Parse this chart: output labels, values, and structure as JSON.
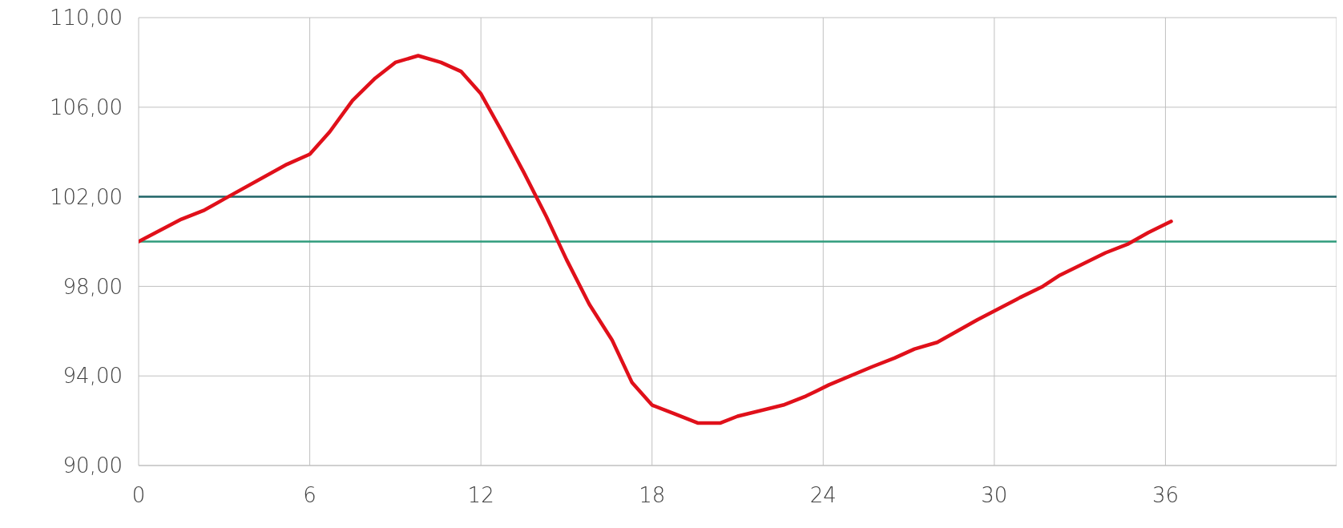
{
  "chart_data": {
    "type": "line",
    "x": [
      0,
      1.5,
      2.3,
      3,
      5.2,
      6,
      6.7,
      7.5,
      8.3,
      9,
      9.8,
      10.6,
      11.3,
      12,
      12.7,
      13.5,
      14.3,
      15,
      15.8,
      16.6,
      17.3,
      18,
      18.8,
      19.6,
      20.4,
      21,
      22.6,
      23.4,
      24.2,
      25.7,
      26.5,
      27.2,
      28,
      28.7,
      29.4,
      30.9,
      31.7,
      32.3,
      33.9,
      34.7,
      35.4,
      36.2
    ],
    "series": [
      {
        "color": "#e0101a",
        "values": [
          100,
          101,
          101.4,
          101.9,
          103.45,
          103.9,
          104.9,
          106.3,
          107.3,
          108,
          108.3,
          108,
          107.6,
          106.6,
          105,
          103.1,
          101.1,
          99.2,
          97.2,
          95.6,
          93.7,
          92.7,
          92.3,
          91.9,
          91.9,
          92.2,
          92.7,
          93.1,
          93.6,
          94.4,
          94.8,
          95.2,
          95.5,
          96,
          96.5,
          97.5,
          98,
          98.5,
          99.5,
          99.9,
          100.4,
          100.9
        ]
      }
    ],
    "xlim": [
      0,
      42
    ],
    "xticks": [
      0,
      6,
      12,
      18,
      24,
      30,
      36
    ],
    "ylim": [
      90,
      110
    ],
    "yticks": [
      {
        "value": 90,
        "label": "90,00"
      },
      {
        "value": 94,
        "label": "94,00"
      },
      {
        "value": 98,
        "label": "98,00"
      },
      {
        "value": 102,
        "label": "102,00"
      },
      {
        "value": 106,
        "label": "106,00"
      },
      {
        "value": 110,
        "label": "110,00"
      }
    ],
    "ref_lines": [
      {
        "axis": "y",
        "value": 102,
        "color": "#1f6467"
      },
      {
        "axis": "y",
        "value": 100,
        "color": "#2f9c7c"
      }
    ],
    "grid": true,
    "marker": "none",
    "line_style": "solid"
  }
}
